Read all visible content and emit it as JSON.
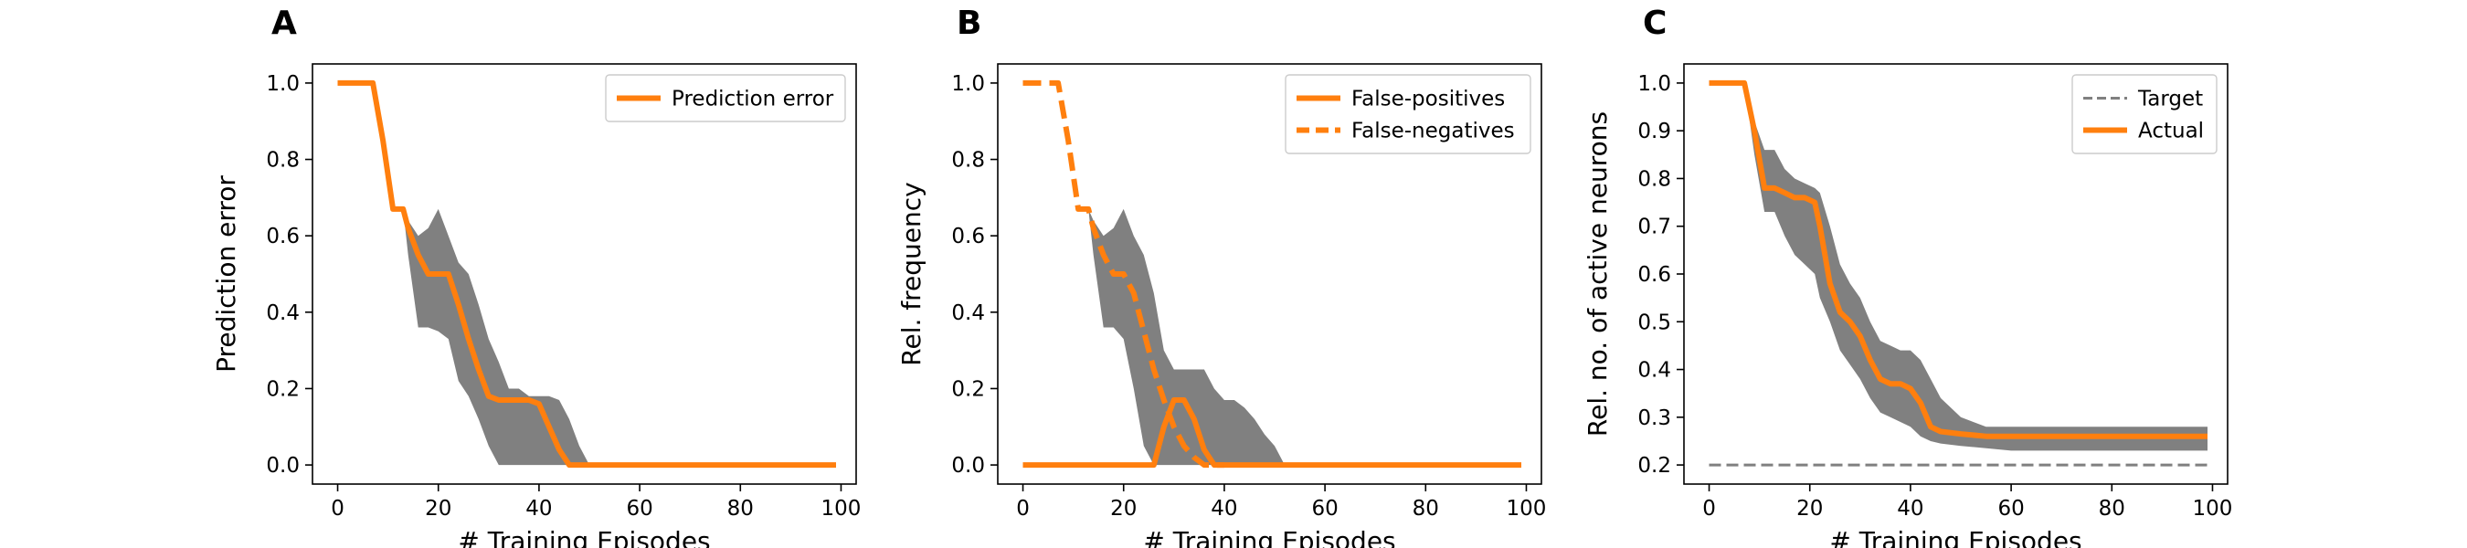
{
  "chart_data": [
    {
      "panel_label": "A",
      "type": "line",
      "xlabel": "# Training Episodes",
      "ylabel": "Prediction error",
      "xlim": [
        -5,
        103
      ],
      "ylim": [
        -0.05,
        1.05
      ],
      "xticks": [
        0,
        20,
        40,
        60,
        80,
        100
      ],
      "xtick_labels": [
        "0",
        "20",
        "40",
        "60",
        "80",
        "100"
      ],
      "yticks": [
        0.0,
        0.2,
        0.4,
        0.6,
        0.8,
        1.0
      ],
      "ytick_labels": [
        "0.0",
        "0.2",
        "0.4",
        "0.6",
        "0.8",
        "1.0"
      ],
      "legend_position": "top-right",
      "series": [
        {
          "name": "Prediction error",
          "style": "solid",
          "color": "#ff7f0e",
          "x": [
            0,
            7,
            9,
            11,
            13,
            14,
            16,
            18,
            20,
            22,
            24,
            26,
            28,
            30,
            32,
            34,
            36,
            38,
            40,
            42,
            44,
            46,
            48,
            50,
            60,
            70,
            80,
            90,
            99
          ],
          "y": [
            1.0,
            1.0,
            0.85,
            0.67,
            0.67,
            0.62,
            0.55,
            0.5,
            0.5,
            0.5,
            0.42,
            0.33,
            0.25,
            0.18,
            0.17,
            0.17,
            0.17,
            0.17,
            0.16,
            0.1,
            0.04,
            0.0,
            0.0,
            0.0,
            0.0,
            0.0,
            0.0,
            0.0,
            0.0
          ]
        }
      ],
      "bands": [
        {
          "color": "#808080",
          "x": [
            0,
            7,
            9,
            11,
            13,
            14,
            16,
            18,
            20,
            22,
            24,
            26,
            28,
            30,
            32,
            34,
            36,
            38,
            40,
            42,
            44,
            46,
            48,
            50,
            60,
            70,
            80,
            90,
            99
          ],
          "lower": [
            1.0,
            1.0,
            0.85,
            0.67,
            0.67,
            0.55,
            0.36,
            0.36,
            0.35,
            0.33,
            0.22,
            0.18,
            0.12,
            0.05,
            0.0,
            0.0,
            0.0,
            0.0,
            0.0,
            0.0,
            0.0,
            0.0,
            0.0,
            0.0,
            0.0,
            0.0,
            0.0,
            0.0,
            0.0
          ],
          "upper": [
            1.0,
            1.0,
            0.85,
            0.67,
            0.67,
            0.64,
            0.6,
            0.62,
            0.67,
            0.6,
            0.53,
            0.5,
            0.42,
            0.33,
            0.27,
            0.2,
            0.2,
            0.18,
            0.18,
            0.18,
            0.17,
            0.12,
            0.05,
            0.0,
            0.0,
            0.0,
            0.0,
            0.0,
            0.0
          ]
        }
      ]
    },
    {
      "panel_label": "B",
      "type": "line",
      "xlabel": "# Training Episodes",
      "ylabel": "Rel. frequency",
      "xlim": [
        -5,
        103
      ],
      "ylim": [
        -0.05,
        1.05
      ],
      "xticks": [
        0,
        20,
        40,
        60,
        80,
        100
      ],
      "xtick_labels": [
        "0",
        "20",
        "40",
        "60",
        "80",
        "100"
      ],
      "yticks": [
        0.0,
        0.2,
        0.4,
        0.6,
        0.8,
        1.0
      ],
      "ytick_labels": [
        "0.0",
        "0.2",
        "0.4",
        "0.6",
        "0.8",
        "1.0"
      ],
      "legend_position": "top-right",
      "series": [
        {
          "name": "False-positives",
          "style": "solid",
          "color": "#ff7f0e",
          "x": [
            0,
            20,
            24,
            26,
            28,
            30,
            32,
            34,
            36,
            38,
            40,
            50,
            60,
            70,
            80,
            90,
            99
          ],
          "y": [
            0.0,
            0.0,
            0.0,
            0.0,
            0.1,
            0.17,
            0.17,
            0.12,
            0.04,
            0.0,
            0.0,
            0.0,
            0.0,
            0.0,
            0.0,
            0.0,
            0.0
          ]
        },
        {
          "name": "False-negatives",
          "style": "dashed",
          "color": "#ff7f0e",
          "x": [
            0,
            7,
            9,
            11,
            13,
            14,
            16,
            18,
            20,
            22,
            24,
            26,
            28,
            30,
            32,
            34,
            36,
            38,
            40
          ],
          "y": [
            1.0,
            1.0,
            0.85,
            0.67,
            0.67,
            0.62,
            0.55,
            0.5,
            0.5,
            0.45,
            0.35,
            0.25,
            0.17,
            0.1,
            0.05,
            0.02,
            0.0,
            0.0,
            0.0
          ]
        }
      ],
      "bands": [
        {
          "color": "#808080",
          "x": [
            0,
            7,
            9,
            11,
            13,
            14,
            16,
            18,
            20,
            22,
            24,
            26,
            28,
            30,
            32,
            34,
            36,
            38,
            40,
            42,
            44,
            46,
            48,
            50,
            52,
            60,
            70,
            80,
            90,
            99
          ],
          "lower": [
            1.0,
            1.0,
            0.85,
            0.67,
            0.67,
            0.55,
            0.36,
            0.36,
            0.33,
            0.2,
            0.05,
            0.0,
            0.0,
            0.0,
            0.0,
            0.0,
            0.0,
            0.0,
            0.0,
            0.0,
            0.0,
            0.0,
            0.0,
            0.0,
            0.0,
            0.0,
            0.0,
            0.0,
            0.0,
            0.0
          ],
          "upper": [
            1.0,
            1.0,
            0.85,
            0.67,
            0.67,
            0.64,
            0.6,
            0.62,
            0.67,
            0.6,
            0.55,
            0.45,
            0.3,
            0.25,
            0.25,
            0.25,
            0.25,
            0.2,
            0.17,
            0.17,
            0.15,
            0.12,
            0.08,
            0.05,
            0.0,
            0.0,
            0.0,
            0.0,
            0.0,
            0.0
          ]
        }
      ]
    },
    {
      "panel_label": "C",
      "type": "line",
      "xlabel": "# Training Episodes",
      "ylabel": "Rel. no. of active neurons",
      "xlim": [
        -5,
        103
      ],
      "ylim": [
        0.16,
        1.04
      ],
      "xticks": [
        0,
        20,
        40,
        60,
        80,
        100
      ],
      "xtick_labels": [
        "0",
        "20",
        "40",
        "60",
        "80",
        "100"
      ],
      "yticks": [
        0.2,
        0.3,
        0.4,
        0.5,
        0.6,
        0.7,
        0.8,
        0.9,
        1.0
      ],
      "ytick_labels": [
        "0.2",
        "0.3",
        "0.4",
        "0.5",
        "0.6",
        "0.7",
        "0.8",
        "0.9",
        "1.0"
      ],
      "legend_position": "top-right",
      "series": [
        {
          "name": "Target",
          "style": "dashed-thin",
          "color": "#808080",
          "x": [
            0,
            99
          ],
          "y": [
            0.2,
            0.2
          ]
        },
        {
          "name": "Actual",
          "style": "solid",
          "color": "#ff7f0e",
          "x": [
            0,
            7,
            9,
            11,
            13,
            15,
            17,
            19,
            21,
            22,
            24,
            26,
            28,
            30,
            32,
            34,
            36,
            38,
            40,
            42,
            44,
            46,
            50,
            55,
            60,
            70,
            80,
            90,
            99
          ],
          "y": [
            1.0,
            1.0,
            0.9,
            0.78,
            0.78,
            0.77,
            0.76,
            0.76,
            0.75,
            0.7,
            0.58,
            0.52,
            0.5,
            0.47,
            0.42,
            0.38,
            0.37,
            0.37,
            0.36,
            0.33,
            0.28,
            0.27,
            0.265,
            0.26,
            0.26,
            0.26,
            0.26,
            0.26,
            0.26
          ]
        }
      ],
      "bands": [
        {
          "color": "#808080",
          "x": [
            0,
            7,
            9,
            11,
            13,
            15,
            17,
            19,
            21,
            22,
            24,
            26,
            28,
            30,
            32,
            34,
            36,
            38,
            40,
            42,
            44,
            46,
            50,
            55,
            60,
            70,
            80,
            90,
            99
          ],
          "lower": [
            1.0,
            1.0,
            0.85,
            0.73,
            0.73,
            0.68,
            0.64,
            0.62,
            0.6,
            0.55,
            0.5,
            0.44,
            0.41,
            0.38,
            0.34,
            0.31,
            0.3,
            0.29,
            0.28,
            0.26,
            0.25,
            0.245,
            0.24,
            0.235,
            0.23,
            0.23,
            0.23,
            0.23,
            0.23
          ],
          "upper": [
            1.0,
            1.0,
            0.92,
            0.86,
            0.86,
            0.82,
            0.8,
            0.79,
            0.78,
            0.77,
            0.7,
            0.62,
            0.58,
            0.55,
            0.5,
            0.46,
            0.45,
            0.44,
            0.44,
            0.42,
            0.38,
            0.34,
            0.3,
            0.28,
            0.28,
            0.28,
            0.28,
            0.28,
            0.28
          ]
        }
      ]
    }
  ],
  "colors": {
    "accent": "#ff7f0e",
    "band": "#808080",
    "axes": "#000000"
  }
}
